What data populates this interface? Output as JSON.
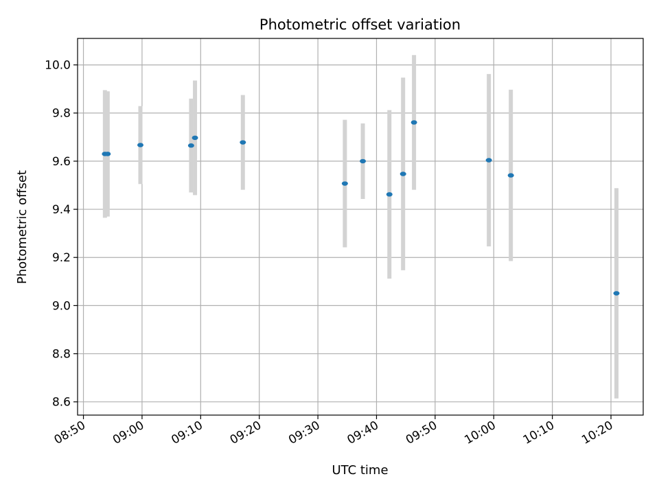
{
  "chart_data": {
    "type": "scatter",
    "title": "Photometric offset variation",
    "xlabel": "UTC time",
    "ylabel": "Photometric offset",
    "xlim": [
      "08:49:00",
      "10:25:30"
    ],
    "ylim": [
      8.545,
      10.11
    ],
    "x_ticks": [
      "08:50",
      "09:00",
      "09:10",
      "09:20",
      "09:30",
      "09:40",
      "09:50",
      "10:00",
      "10:10",
      "10:20"
    ],
    "y_ticks": [
      "8.6",
      "8.8",
      "9.0",
      "9.2",
      "9.4",
      "9.6",
      "9.8",
      "10.0"
    ],
    "grid": true,
    "colors": {
      "marker": "#1f77b4",
      "errorbar": "#d3d3d3",
      "grid": "#b0b0b0"
    },
    "points": [
      {
        "x": "08:53:40",
        "y": 9.63,
        "err": 0.265
      },
      {
        "x": "08:54:08",
        "y": 9.63,
        "err": 0.26
      },
      {
        "x": "08:59:43",
        "y": 9.667,
        "err": 0.162
      },
      {
        "x": "09:08:22",
        "y": 9.665,
        "err": 0.195
      },
      {
        "x": "09:09:02",
        "y": 9.697,
        "err": 0.238
      },
      {
        "x": "09:17:12",
        "y": 9.678,
        "err": 0.197
      },
      {
        "x": "09:34:36",
        "y": 9.507,
        "err": 0.265
      },
      {
        "x": "09:37:40",
        "y": 9.6,
        "err": 0.157
      },
      {
        "x": "09:42:12",
        "y": 9.462,
        "err": 0.35
      },
      {
        "x": "09:44:32",
        "y": 9.547,
        "err": 0.4
      },
      {
        "x": "09:46:24",
        "y": 9.761,
        "err": 0.28
      },
      {
        "x": "09:59:10",
        "y": 9.604,
        "err": 0.358
      },
      {
        "x": "10:02:55",
        "y": 9.541,
        "err": 0.356
      },
      {
        "x": "10:20:56",
        "y": 9.051,
        "err": 0.437
      }
    ]
  }
}
